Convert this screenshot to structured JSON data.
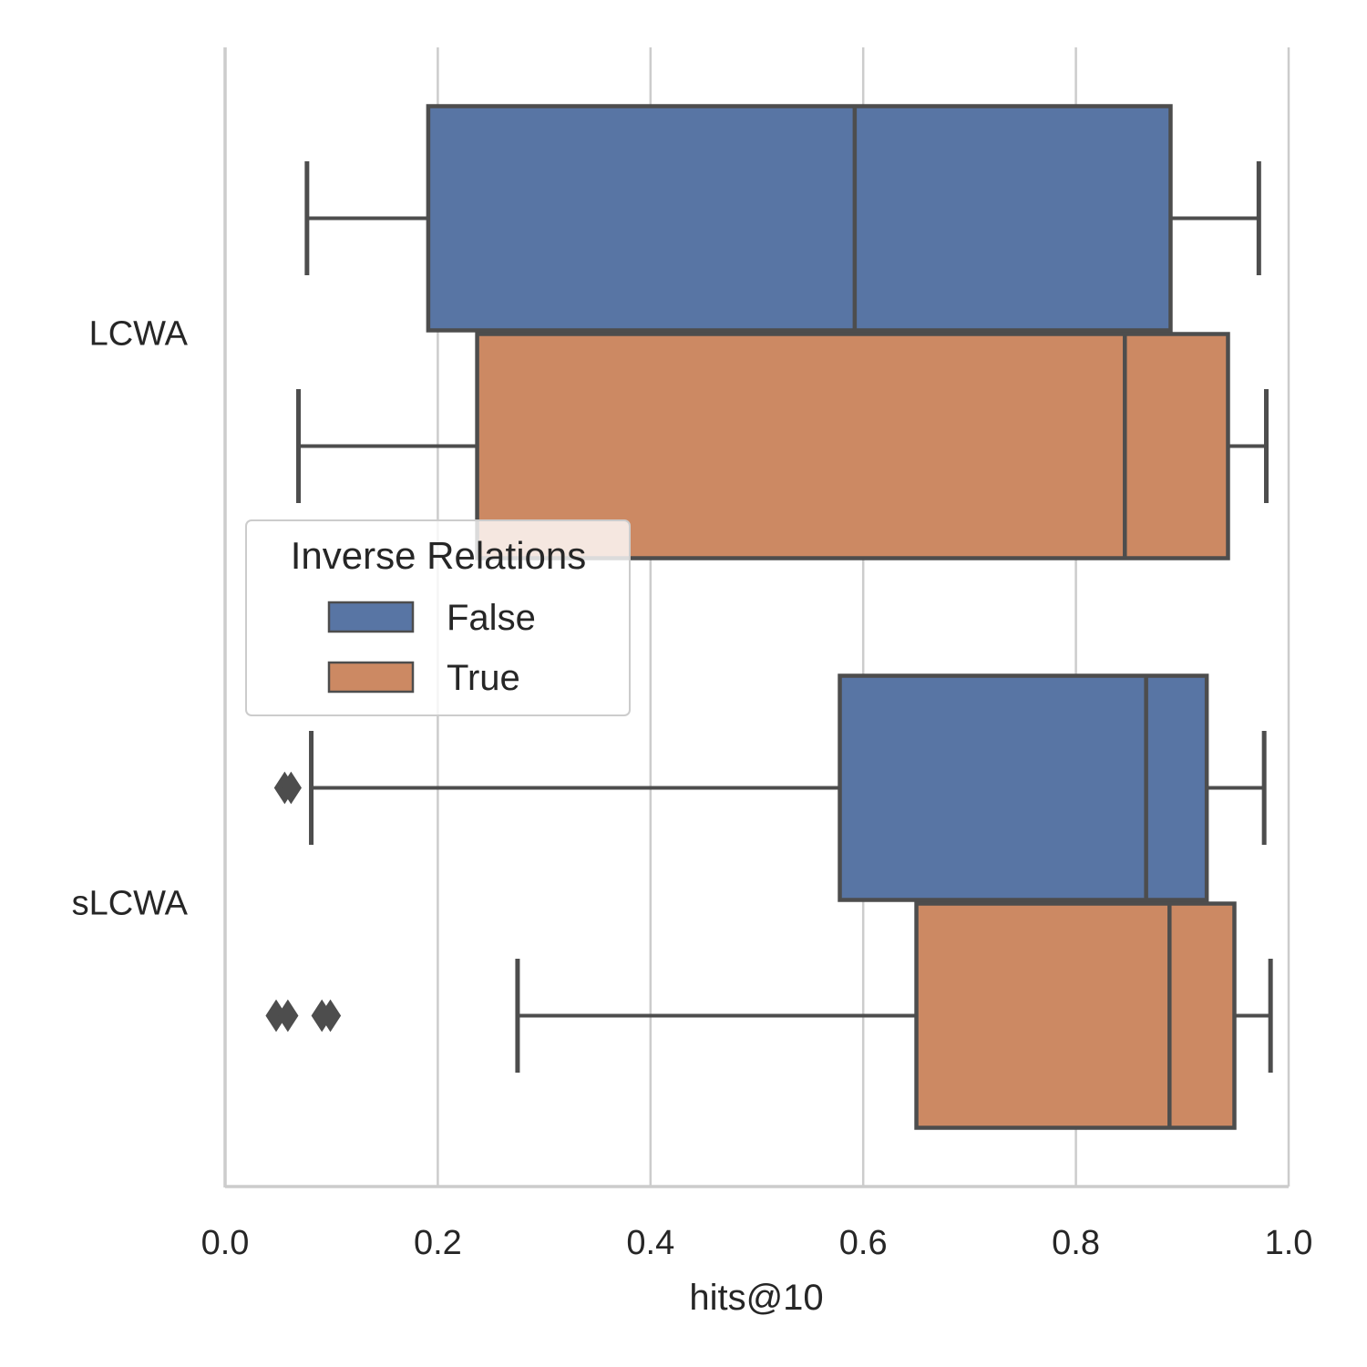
{
  "chart_data": {
    "type": "box",
    "orientation": "horizontal",
    "xlabel": "hits@10",
    "ylabel": "",
    "xlim": [
      0.0,
      1.0
    ],
    "xticks": [
      0.0,
      0.2,
      0.4,
      0.6,
      0.8,
      1.0
    ],
    "xtick_labels": [
      "0.0",
      "0.2",
      "0.4",
      "0.6",
      "0.8",
      "1.0"
    ],
    "grid": "vertical",
    "categories": [
      "LCWA",
      "sLCWA"
    ],
    "legend": {
      "title": "Inverse Relations",
      "placement": "center-left"
    },
    "series": [
      {
        "name": "False",
        "color": "#5875a4",
        "boxes": [
          {
            "category": "LCWA",
            "whisker_low": 0.077,
            "q1": 0.191,
            "median": 0.592,
            "q3": 0.889,
            "whisker_high": 0.972,
            "outliers": []
          },
          {
            "category": "sLCWA",
            "whisker_low": 0.081,
            "q1": 0.578,
            "median": 0.866,
            "q3": 0.923,
            "whisker_high": 0.977,
            "outliers": [
              0.056,
              0.062
            ]
          }
        ]
      },
      {
        "name": "True",
        "color": "#cc8963",
        "boxes": [
          {
            "category": "LCWA",
            "whisker_low": 0.069,
            "q1": 0.237,
            "median": 0.846,
            "q3": 0.943,
            "whisker_high": 0.979,
            "outliers": []
          },
          {
            "category": "sLCWA",
            "whisker_low": 0.275,
            "q1": 0.65,
            "median": 0.888,
            "q3": 0.949,
            "whisker_high": 0.983,
            "outliers": [
              0.048,
              0.059,
              0.091,
              0.099
            ]
          }
        ]
      }
    ]
  }
}
